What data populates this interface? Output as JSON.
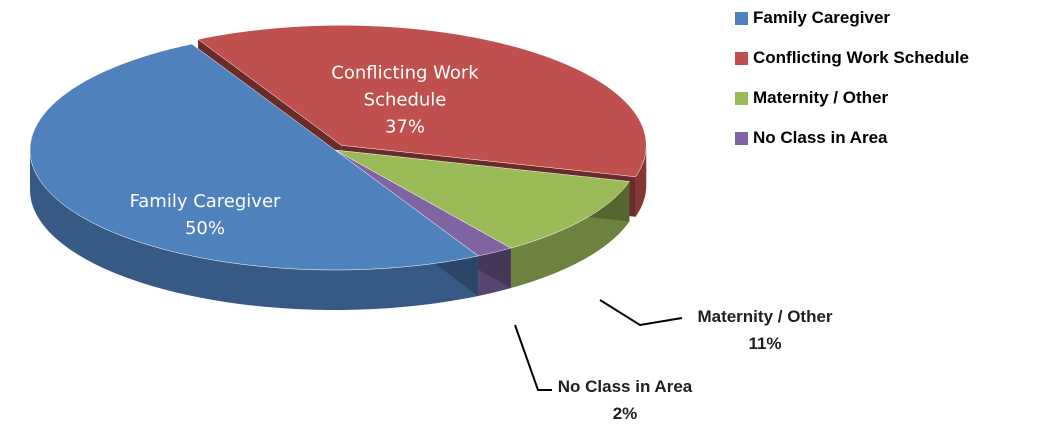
{
  "chart_data": {
    "type": "pie",
    "categories": [
      "Family Caregiver",
      "Conflicting Work Schedule",
      "Maternity / Other",
      "No Class in Area"
    ],
    "values": [
      50,
      37,
      11,
      2
    ],
    "value_labels": [
      "50%",
      "37%",
      "11%",
      "2%"
    ],
    "colors": [
      "#4f81bd",
      "#c0504d",
      "#9bbb59",
      "#8064a2"
    ],
    "legend": "right"
  }
}
